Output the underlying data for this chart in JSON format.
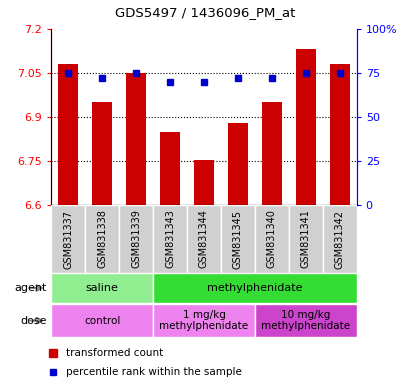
{
  "title": "GDS5497 / 1436096_PM_at",
  "samples": [
    "GSM831337",
    "GSM831338",
    "GSM831339",
    "GSM831343",
    "GSM831344",
    "GSM831345",
    "GSM831340",
    "GSM831341",
    "GSM831342"
  ],
  "red_values": [
    7.08,
    6.95,
    7.05,
    6.85,
    6.755,
    6.88,
    6.95,
    7.13,
    7.08
  ],
  "blue_values": [
    75,
    72,
    75,
    70,
    70,
    72,
    72,
    75,
    75
  ],
  "ylim_left": [
    6.6,
    7.2
  ],
  "ylim_right": [
    0,
    100
  ],
  "yticks_left": [
    6.6,
    6.75,
    6.9,
    7.05,
    7.2
  ],
  "yticks_right": [
    0,
    25,
    50,
    75,
    100
  ],
  "ytick_labels_left": [
    "6.6",
    "6.75",
    "6.9",
    "7.05",
    "7.2"
  ],
  "ytick_labels_right": [
    "0",
    "25",
    "50",
    "75",
    "100%"
  ],
  "hlines": [
    6.75,
    6.9,
    7.05
  ],
  "bar_color": "#cc0000",
  "dot_color": "#0000cc",
  "agent_groups": [
    {
      "label": "saline",
      "start": 0,
      "end": 3,
      "color": "#90ee90"
    },
    {
      "label": "methylphenidate",
      "start": 3,
      "end": 9,
      "color": "#33dd33"
    }
  ],
  "dose_groups": [
    {
      "label": "control",
      "start": 0,
      "end": 3,
      "color": "#ee82ee"
    },
    {
      "label": "1 mg/kg\nmethylphenidate",
      "start": 3,
      "end": 6,
      "color": "#ee82ee"
    },
    {
      "label": "10 mg/kg\nmethylphenidate",
      "start": 6,
      "end": 9,
      "color": "#cc44cc"
    }
  ],
  "legend_red": "transformed count",
  "legend_blue": "percentile rank within the sample",
  "sample_bg": "#d0d0d0",
  "plot_bg": "#ffffff",
  "n_samples": 9
}
